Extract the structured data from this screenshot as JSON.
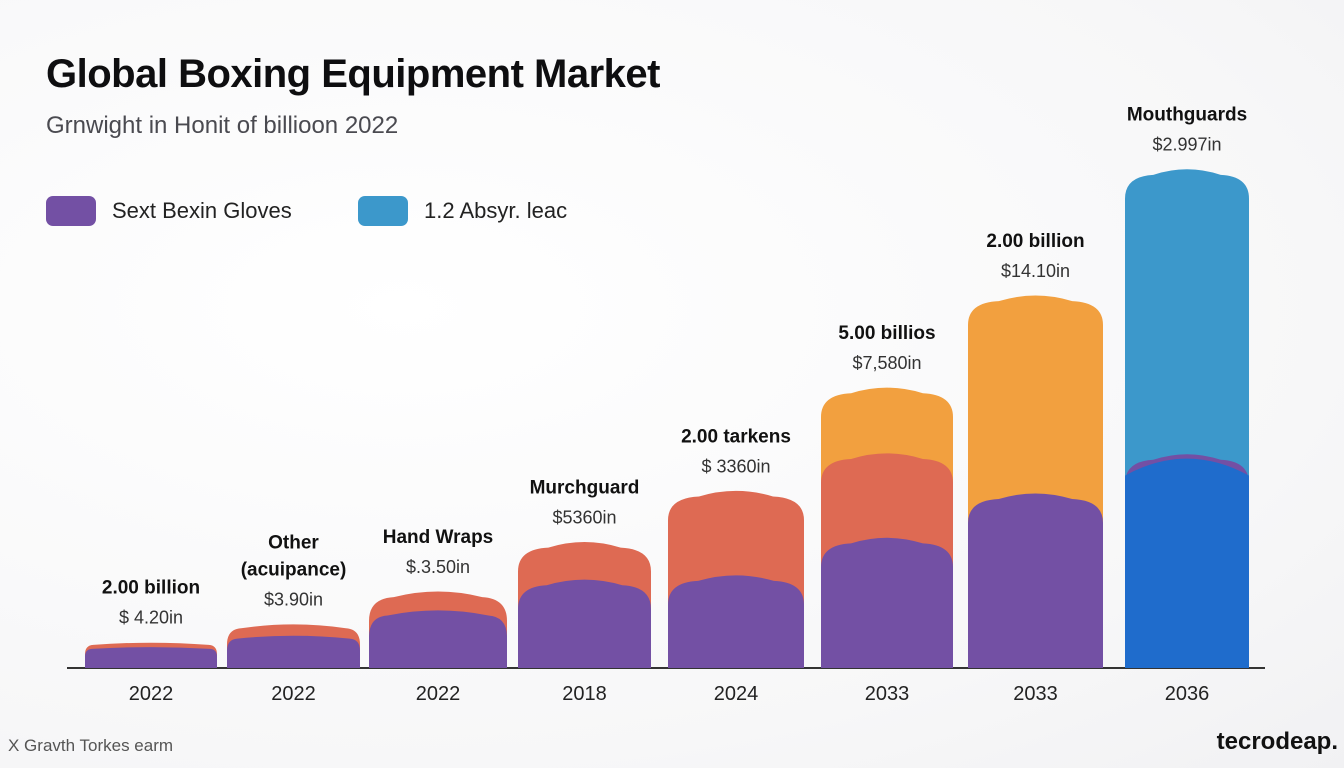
{
  "chart_data": {
    "type": "bar",
    "stacked": true,
    "title": "Global Boxing Equipment Market",
    "subtitle": "Grnwight in Honit of billioon 2022",
    "categories": [
      "2022",
      "2022",
      "2022",
      "2018",
      "2024",
      "2033",
      "2033",
      "2036"
    ],
    "series": [
      {
        "color": "#7350a4",
        "values": [
          0.24,
          0.37,
          0.66,
          1.02,
          1.07,
          1.51,
          2.03,
          2.49
        ]
      },
      {
        "color": "#de6a53",
        "values": [
          0.05,
          0.13,
          0.22,
          0.44,
          0.99,
          0.99,
          0.0,
          0.0
        ]
      },
      {
        "color": "#f2a03f",
        "values": [
          0.0,
          0.0,
          0.0,
          0.0,
          0.0,
          0.77,
          2.32,
          0.0
        ]
      },
      {
        "color": "#3c98cb",
        "values": [
          0.0,
          0.0,
          0.0,
          0.0,
          0.0,
          0.0,
          0.0,
          3.34
        ]
      }
    ],
    "series_colors_note_free": true,
    "ylim": [
      0,
      6.0
    ],
    "grid": false,
    "legend": {
      "placement": "top-left",
      "entries": [
        {
          "label": "Sext Bexin Gloves",
          "color": "#7350a4"
        },
        {
          "label": "1.2 Absyr. leac",
          "color": "#3c98cb"
        }
      ]
    },
    "annotations": [
      {
        "name": "2.00 billion",
        "value": "$ 4.20in"
      },
      {
        "name": "Other",
        "name2": "(acuipance)",
        "value": "$3.90in"
      },
      {
        "name": "Hand Wraps",
        "value": "$.3.50in"
      },
      {
        "name": "Murchguard",
        "value": "$5360in"
      },
      {
        "name": "2.00 tarkens",
        "value": "$ 3360in"
      },
      {
        "name": "5.00 billios",
        "value": "$7,580in"
      },
      {
        "name": "2.00 billion",
        "value": "$14.10in"
      },
      {
        "name": "Mouthguards",
        "value": "$2.997in"
      }
    ]
  },
  "legend": {
    "gloves_label": "Sext Bexin Gloves",
    "other_label": "1.2 Absyr. leac"
  },
  "footer": {
    "note": "X Gravth Torkes earm",
    "brand": "tecrodeap."
  }
}
